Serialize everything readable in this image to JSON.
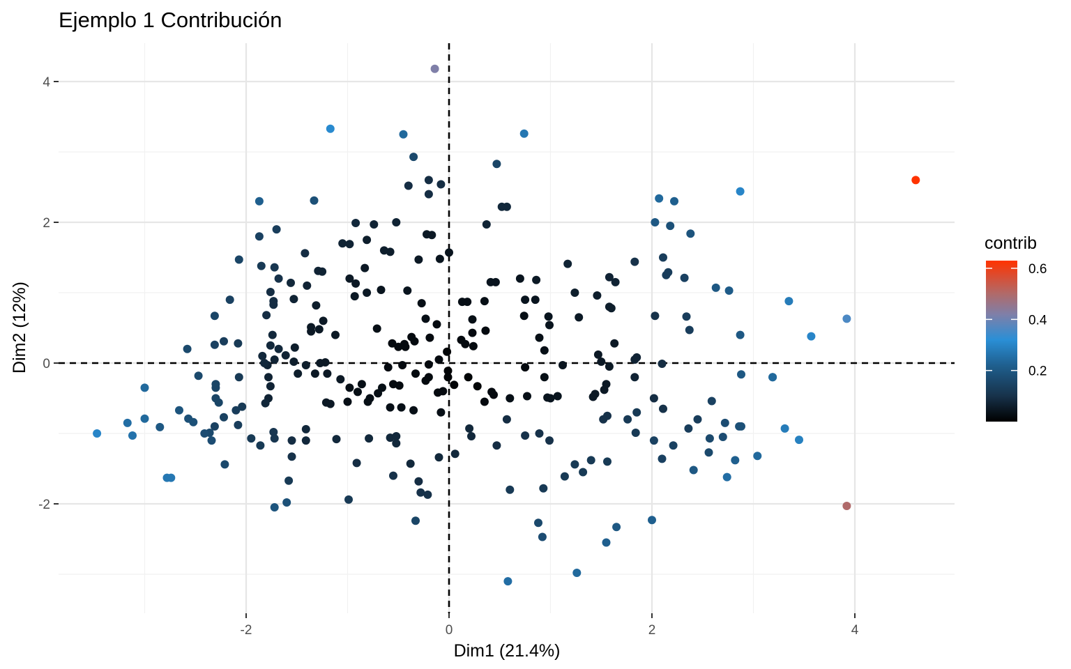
{
  "chart_data": {
    "type": "scatter",
    "title": "Ejemplo 1 Contribución",
    "xlabel": "Dim1 (21.4%)",
    "ylabel": "Dim2 (12%)",
    "xlim": [
      -3.85,
      5.0
    ],
    "ylim": [
      -3.4,
      4.5
    ],
    "x_ticks": [
      -2,
      0,
      2,
      4
    ],
    "x_tick_labels": [
      "-2",
      "0",
      "2",
      "4"
    ],
    "y_ticks": [
      -2,
      0,
      2,
      4
    ],
    "y_tick_labels": [
      "-2",
      "0",
      "2",
      "4"
    ],
    "grid": true,
    "reference_lines": {
      "x": 0,
      "y": 0,
      "style": "dashed"
    },
    "legend": {
      "title": "contrib",
      "placement": "right",
      "range": [
        0.0,
        0.63
      ],
      "ticks": [
        0.2,
        0.4,
        0.6
      ],
      "tick_labels": [
        "0.2",
        "0.4",
        "0.6"
      ],
      "gradient": [
        {
          "value": 0.0,
          "color": "#000000"
        },
        {
          "value": 0.1,
          "color": "#17324a"
        },
        {
          "value": 0.22,
          "color": "#1f5f8e"
        },
        {
          "value": 0.32,
          "color": "#2a8fd6"
        },
        {
          "value": 0.42,
          "color": "#7f7fa8"
        },
        {
          "value": 0.5,
          "color": "#b06a6a"
        },
        {
          "value": 0.63,
          "color": "#ff3300"
        }
      ]
    },
    "points": [
      [
        4.6,
        2.6,
        0.63
      ],
      [
        -0.14,
        4.18,
        0.42
      ],
      [
        3.92,
        -2.03,
        0.5
      ],
      [
        3.92,
        0.63,
        0.36
      ],
      [
        -1.17,
        3.33,
        0.31
      ],
      [
        -0.45,
        3.25,
        0.24
      ],
      [
        0.74,
        3.26,
        0.27
      ],
      [
        2.87,
        2.44,
        0.3
      ],
      [
        3.35,
        0.88,
        0.28
      ],
      [
        3.57,
        0.38,
        0.3
      ],
      [
        3.45,
        -1.09,
        0.29
      ],
      [
        3.31,
        -0.93,
        0.28
      ],
      [
        -3.47,
        -1.0,
        0.3
      ],
      [
        -3.17,
        -0.85,
        0.25
      ],
      [
        -3.12,
        -1.03,
        0.26
      ],
      [
        -3.0,
        -0.79,
        0.24
      ],
      [
        -3.0,
        -0.35,
        0.24
      ],
      [
        -2.85,
        -0.91,
        0.2
      ],
      [
        -2.78,
        -1.63,
        0.27
      ],
      [
        -2.74,
        -1.63,
        0.27
      ],
      [
        0.58,
        -3.1,
        0.25
      ],
      [
        1.26,
        -2.98,
        0.24
      ],
      [
        1.55,
        -2.55,
        0.22
      ],
      [
        1.65,
        -2.33,
        0.2
      ],
      [
        2.0,
        -2.23,
        0.22
      ],
      [
        0.88,
        -2.27,
        0.16
      ],
      [
        0.92,
        -2.47,
        0.17
      ],
      [
        -0.33,
        -2.24,
        0.15
      ],
      [
        -1.72,
        -2.05,
        0.19
      ],
      [
        -1.6,
        -1.98,
        0.18
      ],
      [
        -0.99,
        -1.94,
        0.12
      ],
      [
        -1.87,
        2.3,
        0.22
      ],
      [
        -1.33,
        2.31,
        0.18
      ],
      [
        -0.35,
        2.93,
        0.16
      ],
      [
        0.47,
        2.83,
        0.15
      ],
      [
        2.07,
        2.34,
        0.24
      ],
      [
        2.22,
        2.3,
        0.22
      ],
      [
        2.03,
        2.0,
        0.2
      ],
      [
        2.18,
        1.95,
        0.18
      ],
      [
        2.38,
        1.84,
        0.19
      ],
      [
        2.63,
        1.07,
        0.2
      ],
      [
        2.76,
        1.03,
        0.21
      ],
      [
        2.87,
        0.4,
        0.2
      ],
      [
        2.88,
        -0.16,
        0.2
      ],
      [
        3.19,
        -0.2,
        0.24
      ],
      [
        3.19,
        -0.2,
        0.24
      ],
      [
        3.04,
        -1.32,
        0.24
      ],
      [
        2.82,
        -1.38,
        0.22
      ],
      [
        2.74,
        -1.62,
        0.25
      ],
      [
        2.41,
        -1.52,
        0.2
      ],
      [
        2.72,
        -0.85,
        0.17
      ],
      [
        2.86,
        -0.9,
        0.18
      ],
      [
        2.88,
        -0.9,
        0.18
      ],
      [
        2.57,
        -1.07,
        0.16
      ],
      [
        2.56,
        -1.27,
        0.16
      ],
      [
        2.7,
        -1.05,
        0.17
      ],
      [
        2.21,
        -1.17,
        0.14
      ],
      [
        2.1,
        -1.36,
        0.14
      ],
      [
        2.02,
        -1.1,
        0.14
      ],
      [
        2.36,
        -0.93,
        0.13
      ],
      [
        2.45,
        -0.8,
        0.13
      ],
      [
        2.59,
        -0.54,
        0.14
      ],
      [
        1.84,
        -0.99,
        0.12
      ],
      [
        1.76,
        -0.8,
        0.12
      ],
      [
        1.85,
        -0.7,
        0.12
      ],
      [
        1.56,
        -0.75,
        0.1
      ],
      [
        1.52,
        -0.8,
        0.1
      ],
      [
        1.56,
        -1.4,
        0.12
      ],
      [
        1.4,
        -1.38,
        0.12
      ],
      [
        1.32,
        -1.55,
        0.12
      ],
      [
        1.24,
        -1.44,
        0.12
      ],
      [
        1.14,
        -1.61,
        0.12
      ],
      [
        0.93,
        -1.78,
        0.12
      ],
      [
        0.6,
        -1.8,
        0.12
      ],
      [
        0.99,
        -1.1,
        0.1
      ],
      [
        0.89,
        -1.0,
        0.1
      ],
      [
        0.75,
        -1.03,
        0.1
      ],
      [
        0.57,
        -0.8,
        0.09
      ],
      [
        0.47,
        -1.17,
        0.09
      ],
      [
        0.2,
        -0.93,
        0.08
      ],
      [
        0.22,
        -1.04,
        0.08
      ],
      [
        0.06,
        -1.29,
        0.08
      ],
      [
        -0.1,
        -1.34,
        0.08
      ],
      [
        -0.38,
        -1.43,
        0.08
      ],
      [
        -0.3,
        -1.68,
        0.09
      ],
      [
        -0.28,
        -1.84,
        0.1
      ],
      [
        -0.21,
        -1.87,
        0.1
      ],
      [
        -0.55,
        -1.6,
        0.1
      ],
      [
        -0.58,
        -1.06,
        0.08
      ],
      [
        -0.52,
        -1.04,
        0.08
      ],
      [
        -0.52,
        -1.14,
        0.08
      ],
      [
        -0.79,
        -1.07,
        0.08
      ],
      [
        -0.91,
        -1.42,
        0.09
      ],
      [
        -1.11,
        -1.08,
        0.08
      ],
      [
        -1.41,
        -0.94,
        0.08
      ],
      [
        -1.41,
        -1.1,
        0.08
      ],
      [
        -1.55,
        -1.1,
        0.09
      ],
      [
        -1.55,
        -1.33,
        0.1
      ],
      [
        -1.58,
        -1.67,
        0.12
      ],
      [
        -1.86,
        -1.17,
        0.12
      ],
      [
        -1.95,
        -1.07,
        0.12
      ],
      [
        -1.73,
        -0.98,
        0.11
      ],
      [
        -1.72,
        -1.07,
        0.11
      ],
      [
        -2.04,
        -0.62,
        0.12
      ],
      [
        -2.1,
        -0.67,
        0.13
      ],
      [
        -2.08,
        -0.88,
        0.13
      ],
      [
        -2.22,
        -0.77,
        0.14
      ],
      [
        -2.31,
        -0.9,
        0.14
      ],
      [
        -2.21,
        -1.44,
        0.16
      ],
      [
        -2.36,
        -0.99,
        0.16
      ],
      [
        -2.34,
        -1.1,
        0.17
      ],
      [
        -2.41,
        -1.0,
        0.17
      ],
      [
        -2.52,
        -0.84,
        0.18
      ],
      [
        -2.57,
        -0.79,
        0.18
      ],
      [
        -2.66,
        -0.67,
        0.19
      ],
      [
        -2.3,
        -0.5,
        0.15
      ],
      [
        -2.3,
        -0.35,
        0.15
      ],
      [
        -2.3,
        -0.3,
        0.15
      ],
      [
        -2.47,
        -0.18,
        0.16
      ],
      [
        -2.27,
        -0.56,
        0.15
      ],
      [
        -2.58,
        0.2,
        0.16
      ],
      [
        -2.31,
        0.26,
        0.14
      ],
      [
        -2.22,
        0.31,
        0.13
      ],
      [
        -2.31,
        0.67,
        0.15
      ],
      [
        -2.08,
        0.28,
        0.12
      ],
      [
        -2.07,
        -0.2,
        0.12
      ],
      [
        -2.16,
        0.9,
        0.14
      ],
      [
        -2.07,
        1.47,
        0.15
      ],
      [
        -1.85,
        1.38,
        0.12
      ],
      [
        -1.87,
        1.8,
        0.14
      ],
      [
        -1.7,
        1.9,
        0.13
      ],
      [
        -1.72,
        1.36,
        0.11
      ],
      [
        -1.68,
        1.2,
        0.1
      ],
      [
        -1.76,
        1.01,
        0.09
      ],
      [
        -1.73,
        0.88,
        0.09
      ],
      [
        -1.73,
        0.83,
        0.09
      ],
      [
        -1.8,
        0.68,
        0.09
      ],
      [
        -1.74,
        0.4,
        0.08
      ],
      [
        -1.76,
        0.25,
        0.08
      ],
      [
        -1.68,
        0.2,
        0.08
      ],
      [
        -1.82,
        0.0,
        0.08
      ],
      [
        -1.84,
        0.1,
        0.08
      ],
      [
        -1.72,
        0.05,
        0.07
      ],
      [
        -1.61,
        0.11,
        0.07
      ],
      [
        -1.79,
        -0.03,
        0.07
      ],
      [
        -1.78,
        -0.2,
        0.07
      ],
      [
        -1.76,
        -0.33,
        0.07
      ],
      [
        -1.78,
        -0.5,
        0.07
      ],
      [
        -1.81,
        -0.57,
        0.08
      ],
      [
        -1.52,
        0.22,
        0.06
      ],
      [
        -1.49,
        -0.15,
        0.06
      ],
      [
        -1.53,
        0.02,
        0.06
      ],
      [
        -1.41,
        -0.03,
        0.06
      ],
      [
        -1.53,
        0.91,
        0.07
      ],
      [
        -1.4,
        1.1,
        0.07
      ],
      [
        -1.56,
        1.14,
        0.08
      ],
      [
        -1.42,
        1.56,
        0.09
      ],
      [
        -1.31,
        0.82,
        0.06
      ],
      [
        -1.28,
        0.48,
        0.05
      ],
      [
        -1.36,
        0.45,
        0.05
      ],
      [
        -1.36,
        0.51,
        0.05
      ],
      [
        -1.24,
        0.6,
        0.05
      ],
      [
        -1.22,
        0.01,
        0.05
      ],
      [
        -1.27,
        0.0,
        0.05
      ],
      [
        -1.25,
        1.3,
        0.07
      ],
      [
        -1.29,
        1.31,
        0.07
      ],
      [
        -1.12,
        0.4,
        0.05
      ],
      [
        -1.32,
        -0.15,
        0.05
      ],
      [
        -1.2,
        -0.15,
        0.05
      ],
      [
        -1.21,
        -0.56,
        0.05
      ],
      [
        -1.17,
        -0.58,
        0.05
      ],
      [
        -1.07,
        -0.23,
        0.05
      ],
      [
        -1.05,
        1.7,
        0.07
      ],
      [
        -0.98,
        1.69,
        0.07
      ],
      [
        -0.92,
        1.99,
        0.08
      ],
      [
        -0.74,
        1.97,
        0.07
      ],
      [
        -0.52,
        2.0,
        0.07
      ],
      [
        -0.58,
        1.58,
        0.06
      ],
      [
        -0.64,
        1.6,
        0.06
      ],
      [
        -0.92,
        1.13,
        0.05
      ],
      [
        -0.98,
        1.2,
        0.05
      ],
      [
        -0.93,
        0.95,
        0.05
      ],
      [
        -0.81,
        1.0,
        0.05
      ],
      [
        -0.83,
        1.35,
        0.05
      ],
      [
        -0.81,
        1.75,
        0.06
      ],
      [
        -0.67,
        1.04,
        0.04
      ],
      [
        -0.41,
        1.03,
        0.04
      ],
      [
        -0.3,
        1.47,
        0.05
      ],
      [
        -0.17,
        1.82,
        0.05
      ],
      [
        -0.22,
        1.83,
        0.05
      ],
      [
        -0.09,
        1.48,
        0.04
      ],
      [
        0.0,
        1.57,
        0.04
      ],
      [
        -0.27,
        0.85,
        0.03
      ],
      [
        -0.23,
        0.63,
        0.03
      ],
      [
        -0.71,
        0.49,
        0.03
      ],
      [
        -0.56,
        0.28,
        0.02
      ],
      [
        -0.5,
        0.23,
        0.02
      ],
      [
        -0.43,
        0.23,
        0.02
      ],
      [
        -0.37,
        0.37,
        0.02
      ],
      [
        -0.44,
        0.27,
        0.02
      ],
      [
        -0.34,
        0.31,
        0.02
      ],
      [
        -0.19,
        0.36,
        0.02
      ],
      [
        -0.2,
        -0.02,
        0.02
      ],
      [
        -0.1,
        0.05,
        0.02
      ],
      [
        -0.11,
        -0.42,
        0.02
      ],
      [
        -0.2,
        -0.2,
        0.02
      ],
      [
        -0.23,
        -0.25,
        0.02
      ],
      [
        -0.46,
        -0.03,
        0.02
      ],
      [
        -0.49,
        -0.32,
        0.02
      ],
      [
        -0.55,
        -0.3,
        0.02
      ],
      [
        -0.58,
        -0.63,
        0.03
      ],
      [
        -0.66,
        -0.35,
        0.03
      ],
      [
        -0.7,
        -0.43,
        0.03
      ],
      [
        -0.78,
        -0.5,
        0.03
      ],
      [
        -0.8,
        -0.55,
        0.03
      ],
      [
        -0.86,
        -0.3,
        0.03
      ],
      [
        -0.9,
        -0.41,
        0.03
      ],
      [
        -0.98,
        -0.35,
        0.03
      ],
      [
        -1.0,
        -0.55,
        0.03
      ],
      [
        -0.47,
        -0.63,
        0.03
      ],
      [
        -0.6,
        -0.06,
        0.02
      ],
      [
        -0.35,
        -0.67,
        0.03
      ],
      [
        -0.06,
        -0.4,
        0.02
      ],
      [
        -0.08,
        -0.7,
        0.03
      ],
      [
        -0.33,
        -0.15,
        0.02
      ],
      [
        -0.12,
        0.55,
        0.02
      ],
      [
        -0.2,
        2.4,
        0.09
      ],
      [
        -0.2,
        2.6,
        0.09
      ],
      [
        -0.4,
        2.52,
        0.09
      ],
      [
        -0.08,
        2.54,
        0.09
      ],
      [
        0.37,
        1.97,
        0.07
      ],
      [
        0.52,
        2.22,
        0.08
      ],
      [
        0.57,
        2.22,
        0.08
      ],
      [
        0.41,
        1.15,
        0.04
      ],
      [
        0.46,
        1.15,
        0.04
      ],
      [
        0.35,
        0.88,
        0.03
      ],
      [
        0.18,
        0.87,
        0.03
      ],
      [
        0.13,
        0.87,
        0.03
      ],
      [
        0.23,
        0.62,
        0.03
      ],
      [
        0.23,
        0.43,
        0.02
      ],
      [
        0.36,
        0.46,
        0.02
      ],
      [
        0.12,
        0.33,
        0.02
      ],
      [
        0.16,
        0.27,
        0.02
      ],
      [
        0.24,
        0.24,
        0.02
      ],
      [
        -0.02,
        0.16,
        0.01
      ],
      [
        0.05,
        -0.31,
        0.01
      ],
      [
        -0.01,
        -0.11,
        0.01
      ],
      [
        -0.01,
        -0.2,
        0.01
      ],
      [
        0.19,
        -0.2,
        0.01
      ],
      [
        0.28,
        -0.33,
        0.01
      ],
      [
        0.35,
        -0.55,
        0.02
      ],
      [
        0.42,
        -0.41,
        0.02
      ],
      [
        0.44,
        -0.45,
        0.02
      ],
      [
        0.7,
        1.2,
        0.04
      ],
      [
        0.75,
        0.9,
        0.04
      ],
      [
        0.74,
        0.67,
        0.03
      ],
      [
        0.85,
        0.9,
        0.04
      ],
      [
        0.86,
        1.18,
        0.05
      ],
      [
        0.89,
        0.36,
        0.03
      ],
      [
        0.98,
        0.66,
        0.04
      ],
      [
        0.99,
        0.54,
        0.04
      ],
      [
        0.94,
        0.18,
        0.03
      ],
      [
        0.75,
        -0.06,
        0.02
      ],
      [
        0.94,
        -0.2,
        0.03
      ],
      [
        1.0,
        -0.5,
        0.04
      ],
      [
        0.97,
        -0.49,
        0.04
      ],
      [
        1.07,
        -0.47,
        0.04
      ],
      [
        1.12,
        -0.03,
        0.04
      ],
      [
        0.77,
        -0.47,
        0.03
      ],
      [
        0.6,
        -0.5,
        0.03
      ],
      [
        1.17,
        1.41,
        0.07
      ],
      [
        1.24,
        1.0,
        0.06
      ],
      [
        1.28,
        0.65,
        0.05
      ],
      [
        1.46,
        0.96,
        0.06
      ],
      [
        1.58,
        0.8,
        0.06
      ],
      [
        1.6,
        0.78,
        0.06
      ],
      [
        1.58,
        1.22,
        0.07
      ],
      [
        1.64,
        1.15,
        0.07
      ],
      [
        1.63,
        0.28,
        0.05
      ],
      [
        1.47,
        0.12,
        0.05
      ],
      [
        1.5,
        0.02,
        0.05
      ],
      [
        1.58,
        -0.05,
        0.05
      ],
      [
        1.55,
        -0.3,
        0.05
      ],
      [
        1.53,
        -0.38,
        0.05
      ],
      [
        1.44,
        -0.44,
        0.05
      ],
      [
        1.42,
        -0.48,
        0.05
      ],
      [
        1.83,
        1.44,
        0.1
      ],
      [
        1.85,
        0.08,
        0.07
      ],
      [
        1.83,
        0.05,
        0.07
      ],
      [
        1.83,
        -0.2,
        0.07
      ],
      [
        2.1,
        -0.01,
        0.09
      ],
      [
        2.02,
        -0.5,
        0.09
      ],
      [
        2.11,
        -0.65,
        0.1
      ],
      [
        2.03,
        0.67,
        0.1
      ],
      [
        2.14,
        1.25,
        0.13
      ],
      [
        2.16,
        1.29,
        0.13
      ],
      [
        2.11,
        1.5,
        0.13
      ],
      [
        2.32,
        1.21,
        0.14
      ],
      [
        2.34,
        0.66,
        0.13
      ],
      [
        2.37,
        0.47,
        0.13
      ]
    ]
  }
}
